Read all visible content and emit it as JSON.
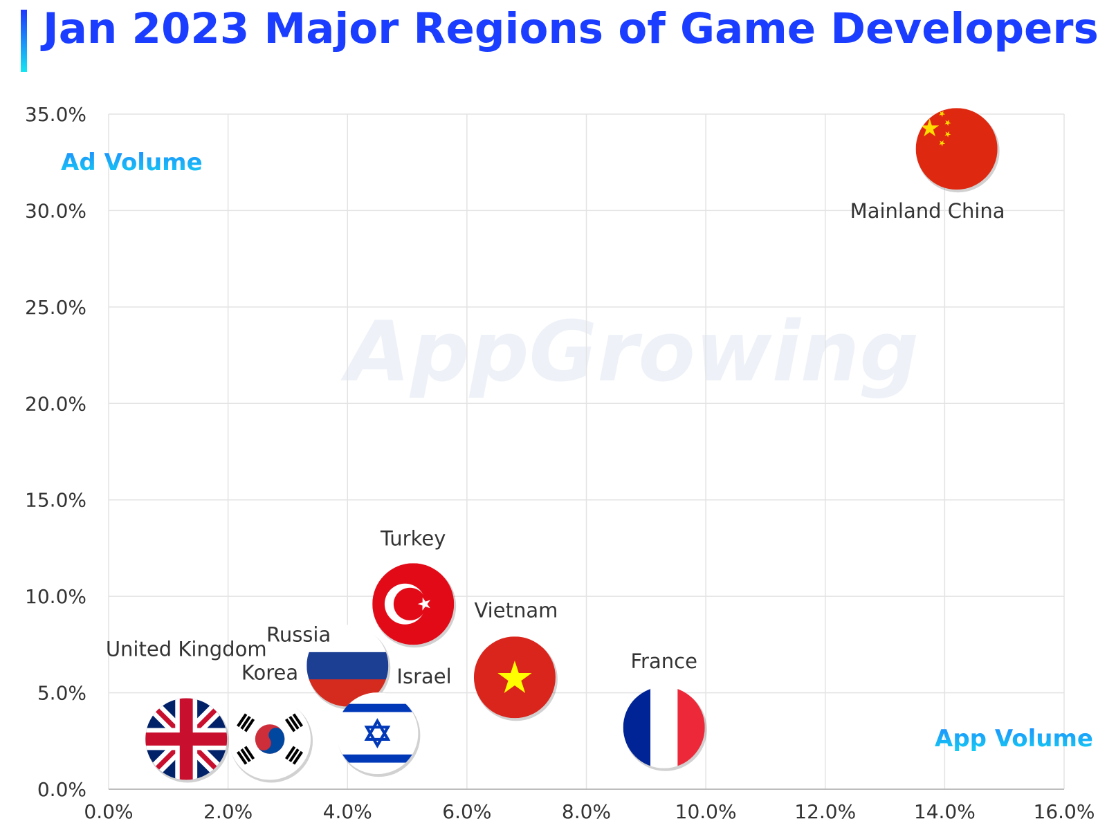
{
  "title": "Jan 2023 Major Regions of Game Developers",
  "watermark": "AppGrowing",
  "colors": {
    "title": "#1a3dff",
    "title_bar_top": "#1f37ff",
    "title_bar_bottom": "#14e6f2",
    "axis_title_top": "#1e8cff",
    "axis_title_bottom": "#14d0f0",
    "grid": "#e3e3e3",
    "tick_text": "#333333"
  },
  "chart_data": {
    "type": "scatter",
    "title": "Jan 2023 Major Regions of Game Developers",
    "xlabel": "App Volume",
    "ylabel": "Ad Volume",
    "xlim": [
      0,
      16
    ],
    "ylim": [
      0,
      35
    ],
    "xticks": [
      "0.0%",
      "2.0%",
      "4.0%",
      "6.0%",
      "8.0%",
      "10.0%",
      "12.0%",
      "14.0%",
      "16.0%"
    ],
    "yticks": [
      "0.0%",
      "5.0%",
      "10.0%",
      "15.0%",
      "20.0%",
      "25.0%",
      "30.0%",
      "35.0%"
    ],
    "grid": true,
    "points": [
      {
        "name": "Mainland China",
        "x": 14.2,
        "y": 33.2,
        "flag": "china-flag"
      },
      {
        "name": "Turkey",
        "x": 5.1,
        "y": 9.6,
        "flag": "turkey-flag"
      },
      {
        "name": "Russia",
        "x": 4.0,
        "y": 6.4,
        "flag": "russia-flag"
      },
      {
        "name": "Vietnam",
        "x": 6.8,
        "y": 5.8,
        "flag": "vietnam-flag"
      },
      {
        "name": "Israel",
        "x": 4.5,
        "y": 2.9,
        "flag": "israel-flag"
      },
      {
        "name": "France",
        "x": 9.3,
        "y": 3.2,
        "flag": "france-flag"
      },
      {
        "name": "United Kingdom",
        "x": 1.3,
        "y": 2.6,
        "flag": "uk-flag"
      },
      {
        "name": "Korea",
        "x": 2.7,
        "y": 2.6,
        "flag": "korea-flag"
      }
    ]
  }
}
